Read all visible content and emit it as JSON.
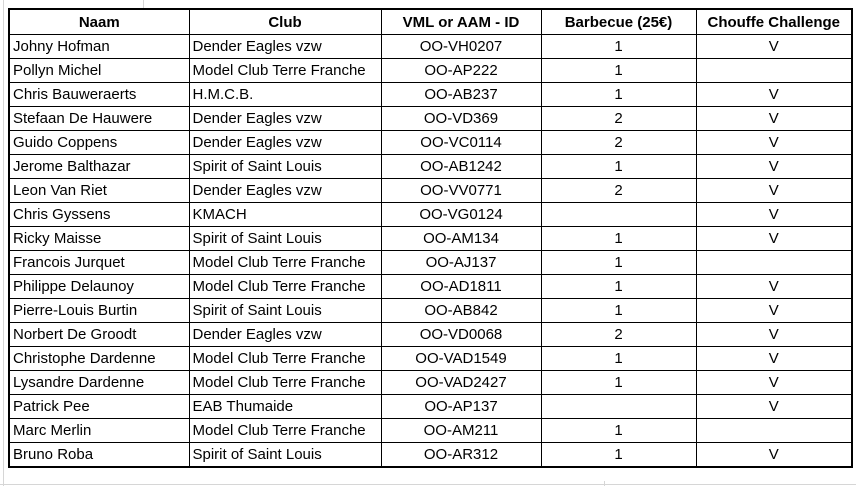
{
  "colors": {
    "table_border": "#000000",
    "text": "#000000",
    "background": "#ffffff",
    "sheet_gridline": "#d6d6d6"
  },
  "table": {
    "columns": [
      "Naam",
      "Club",
      "VML or AAM - ID",
      "Barbecue (25€)",
      "Chouffe Challenge"
    ],
    "column_keys": [
      "naam",
      "club",
      "vml-aam-id",
      "barbecue",
      "chouffe-challenge"
    ],
    "rows": [
      [
        "Johny Hofman",
        "Dender Eagles vzw",
        "OO-VH0207",
        "1",
        "V"
      ],
      [
        "Pollyn Michel",
        "Model Club Terre Franche",
        "OO-AP222",
        "1",
        ""
      ],
      [
        "Chris Bauweraerts",
        "H.M.C.B.",
        "OO-AB237",
        "1",
        "V"
      ],
      [
        "Stefaan De Hauwere",
        "Dender Eagles vzw",
        "OO-VD369",
        "2",
        "V"
      ],
      [
        "Guido Coppens",
        "Dender Eagles vzw",
        "OO-VC0114",
        "2",
        "V"
      ],
      [
        "Jerome Balthazar",
        "Spirit of Saint Louis",
        "OO-AB1242",
        "1",
        "V"
      ],
      [
        "Leon Van Riet",
        "Dender Eagles vzw",
        "OO-VV0771",
        "2",
        "V"
      ],
      [
        "Chris Gyssens",
        "KMACH",
        "OO-VG0124",
        "",
        "V"
      ],
      [
        "Ricky Maisse",
        "Spirit of Saint Louis",
        "OO-AM134",
        "1",
        "V"
      ],
      [
        "Francois Jurquet",
        "Model Club Terre Franche",
        "OO-AJ137",
        "1",
        ""
      ],
      [
        "Philippe Delaunoy",
        "Model Club Terre Franche",
        "OO-AD1811",
        "1",
        "V"
      ],
      [
        "Pierre-Louis Burtin",
        "Spirit of Saint Louis",
        "OO-AB842",
        "1",
        "V"
      ],
      [
        "Norbert De Groodt",
        "Dender Eagles vzw",
        "OO-VD0068",
        "2",
        "V"
      ],
      [
        "Christophe Dardenne",
        "Model Club Terre Franche",
        "OO-VAD1549",
        "1",
        "V"
      ],
      [
        "Lysandre Dardenne",
        "Model Club Terre Franche",
        "OO-VAD2427",
        "1",
        "V"
      ],
      [
        "Patrick Pee",
        "EAB Thumaide",
        "OO-AP137",
        "",
        "V"
      ],
      [
        "Marc Merlin",
        "Model Club Terre Franche",
        "OO-AM211",
        "1",
        ""
      ],
      [
        "Bruno Roba",
        "Spirit of Saint Louis",
        "OO-AR312",
        "1",
        "V"
      ]
    ]
  }
}
